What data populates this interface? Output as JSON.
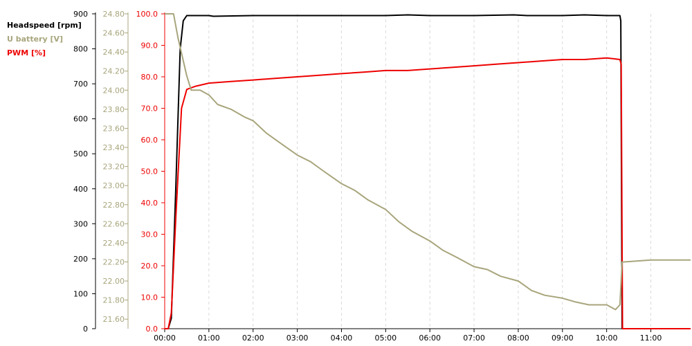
{
  "chart_data": {
    "type": "line",
    "legend": [
      {
        "label": "Headspeed [rpm]",
        "color": "#000000"
      },
      {
        "label": "U battery [V]",
        "color": "#a8a57c"
      },
      {
        "label": "PWM [%]",
        "color": "#ee0000"
      }
    ],
    "axes": {
      "headspeed": {
        "label": "Headspeed [rpm]",
        "color": "#000000",
        "ylim": [
          0,
          900
        ],
        "ticks": [
          "0",
          "100",
          "200",
          "300",
          "400",
          "500",
          "600",
          "700",
          "800",
          "900"
        ]
      },
      "battery": {
        "label": "U battery [V]",
        "color": "#a8a57c",
        "ylim": [
          21.5,
          24.8
        ],
        "ticks": [
          "21.60",
          "21.80",
          "22.00",
          "22.20",
          "22.40",
          "22.60",
          "22.80",
          "23.00",
          "23.20",
          "23.40",
          "23.60",
          "23.80",
          "24.00",
          "24.20",
          "24.40",
          "24.60",
          "24.80"
        ]
      },
      "pwm": {
        "label": "PWM [%]",
        "color": "#ee0000",
        "ylim": [
          0,
          100
        ],
        "ticks": [
          "0.0",
          "10.0",
          "20.0",
          "30.0",
          "40.0",
          "50.0",
          "60.0",
          "70.0",
          "80.0",
          "90.0",
          "100.0"
        ]
      }
    },
    "x_axis": {
      "unit": "minutes",
      "xlim": [
        0,
        11.9
      ],
      "ticks": [
        "00:00",
        "01:00",
        "02:00",
        "03:00",
        "04:00",
        "05:00",
        "06:00",
        "07:00",
        "08:00",
        "09:00",
        "10:00",
        "11:00"
      ],
      "grid": "vertical dashed"
    },
    "series": [
      {
        "name": "Headspeed [rpm]",
        "axis": "headspeed",
        "color": "#000000",
        "x": [
          0,
          0.08,
          0.15,
          0.25,
          0.35,
          0.42,
          0.5,
          1.0,
          1.1,
          2.0,
          3.0,
          4.0,
          5.0,
          5.5,
          6.0,
          7.0,
          7.9,
          8.2,
          9.0,
          9.5,
          10.0,
          10.3,
          10.32,
          10.35,
          11.9
        ],
        "values": [
          0,
          0,
          30,
          400,
          800,
          880,
          895,
          895,
          893,
          895,
          895,
          895,
          895,
          897,
          895,
          895,
          897,
          895,
          895,
          897,
          895,
          895,
          880,
          0,
          0
        ]
      },
      {
        "name": "PWM [%]",
        "axis": "pwm",
        "color": "#ee0000",
        "x": [
          0,
          0.08,
          0.15,
          0.25,
          0.38,
          0.5,
          0.7,
          1.0,
          1.5,
          2.0,
          2.5,
          3.0,
          3.5,
          4.0,
          4.5,
          5.0,
          5.5,
          6.0,
          6.5,
          7.0,
          7.5,
          8.0,
          8.5,
          9.0,
          9.5,
          10.0,
          10.3,
          10.33,
          10.36,
          11.9
        ],
        "values": [
          0,
          0,
          5,
          35,
          70,
          76,
          77,
          78,
          78.5,
          79,
          79.5,
          80,
          80.5,
          81,
          81.5,
          82,
          82,
          82.5,
          83,
          83.5,
          84,
          84.5,
          85,
          85.5,
          85.5,
          86,
          85.5,
          84,
          0,
          0
        ]
      },
      {
        "name": "U battery [V]",
        "axis": "battery",
        "color": "#a8a57c",
        "x": [
          0,
          0.2,
          0.3,
          0.4,
          0.5,
          0.6,
          0.8,
          1.0,
          1.2,
          1.5,
          1.8,
          2.0,
          2.3,
          2.6,
          3.0,
          3.3,
          3.6,
          4.0,
          4.3,
          4.6,
          5.0,
          5.3,
          5.6,
          6.0,
          6.3,
          6.6,
          7.0,
          7.3,
          7.6,
          8.0,
          8.3,
          8.6,
          9.0,
          9.3,
          9.6,
          10.0,
          10.2,
          10.3,
          10.35,
          10.4,
          11.0,
          11.9
        ],
        "values": [
          24.8,
          24.8,
          24.55,
          24.35,
          24.15,
          24.0,
          24.0,
          23.95,
          23.85,
          23.8,
          23.72,
          23.68,
          23.55,
          23.45,
          23.32,
          23.25,
          23.15,
          23.02,
          22.95,
          22.85,
          22.75,
          22.62,
          22.52,
          22.42,
          22.32,
          22.25,
          22.15,
          22.12,
          22.05,
          22.0,
          21.9,
          21.85,
          21.82,
          21.78,
          21.75,
          21.75,
          21.7,
          21.75,
          22.2,
          22.2,
          22.22,
          22.22
        ]
      }
    ]
  }
}
